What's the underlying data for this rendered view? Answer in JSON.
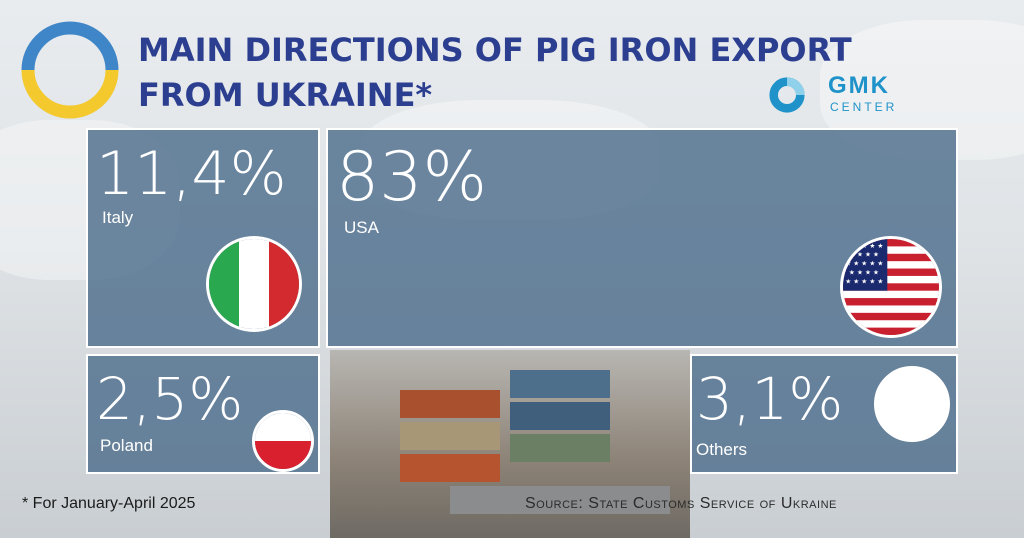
{
  "title": {
    "line1": "MAIN DIRECTIONS OF PIG IRON EXPORT",
    "line2": "FROM UKRAINE*"
  },
  "logo": {
    "name": "GMK",
    "sub": "CENTER"
  },
  "chart_data": {
    "type": "treemap",
    "unit": "%",
    "items": [
      {
        "label": "Italy",
        "display": "11,4%",
        "value": 11.4,
        "icon": "italy-flag-icon"
      },
      {
        "label": "USA",
        "display": "83%",
        "value": 83,
        "icon": "usa-flag-icon"
      },
      {
        "label": "Poland",
        "display": "2,5%",
        "value": 2.5,
        "icon": "poland-flag-icon"
      },
      {
        "label": "Others",
        "display": "3,1%",
        "value": 3.1,
        "icon": "blank-circle-icon"
      }
    ]
  },
  "footnote": "* For January-April 2025",
  "source": "Source: State Customs Service of Ukraine",
  "colors": {
    "title": "#2b3e8f",
    "tile": "#4e6e8c",
    "ring_blue": "#3f86c8",
    "ring_yellow": "#f3c92e",
    "logo": "#1f93c9"
  }
}
